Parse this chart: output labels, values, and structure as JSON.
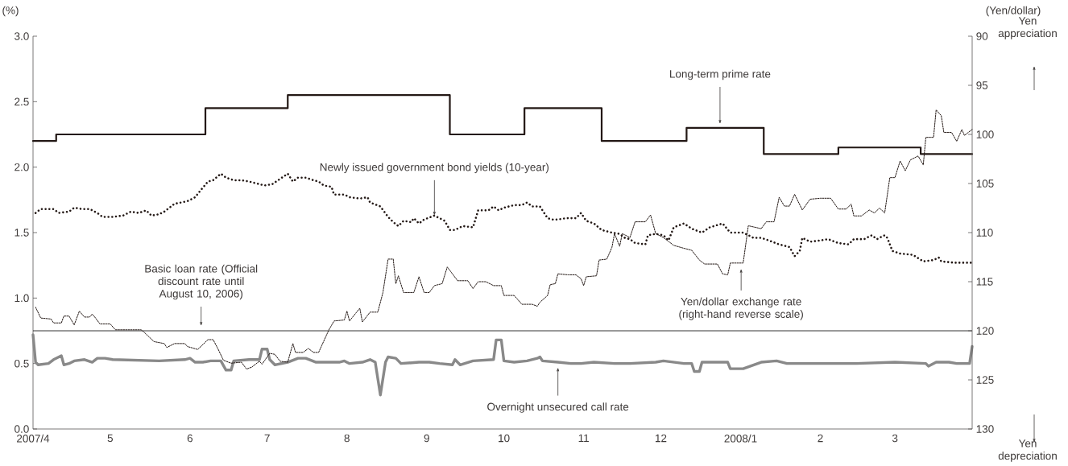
{
  "chart_data": {
    "type": "line",
    "ylabel": "(%)",
    "y2label": "(Yen/dollar)",
    "xlim": [
      "2007-04-01",
      "2008-03-31"
    ],
    "xticks": [
      {
        "value": "2007-04-01",
        "label": "2007/4"
      },
      {
        "value": "2007-05-01",
        "label": "5"
      },
      {
        "value": "2007-06-01",
        "label": "6"
      },
      {
        "value": "2007-07-01",
        "label": "7"
      },
      {
        "value": "2007-08-01",
        "label": "8"
      },
      {
        "value": "2007-09-01",
        "label": "9"
      },
      {
        "value": "2007-10-01",
        "label": "10"
      },
      {
        "value": "2007-11-01",
        "label": "11"
      },
      {
        "value": "2007-12-01",
        "label": "12"
      },
      {
        "value": "2008-01-01",
        "label": "2008/1"
      },
      {
        "value": "2008-02-01",
        "label": "2"
      },
      {
        "value": "2008-03-01",
        "label": "3"
      }
    ],
    "ylim": [
      0,
      3
    ],
    "yticks": [
      {
        "value": 0,
        "label": "0.0"
      },
      {
        "value": 0.5,
        "label": "0.5"
      },
      {
        "value": 1,
        "label": "1.0"
      },
      {
        "value": 1.5,
        "label": "1.5"
      },
      {
        "value": 2,
        "label": "2.0"
      },
      {
        "value": 2.5,
        "label": "2.5"
      },
      {
        "value": 3,
        "label": "3.0"
      }
    ],
    "y2lim": [
      130,
      90
    ],
    "y2ticks": [
      90,
      95,
      100,
      105,
      110,
      115,
      120,
      125,
      130
    ],
    "series": [
      {
        "type": "step",
        "color": "#231815",
        "line_style": "solid",
        "x": [
          "2007-04-01",
          "2007-04-10",
          "2007-06-07",
          "2007-07-09",
          "2007-09-10",
          "2007-10-09",
          "2007-11-08",
          "2007-12-11",
          "2008-01-10",
          "2008-02-08",
          "2008-03-11",
          "2008-03-31"
        ],
        "values": [
          2.2,
          2.25,
          2.45,
          2.55,
          2.25,
          2.45,
          2.2,
          2.3,
          2.1,
          2.15,
          2.1,
          2.1
        ]
      },
      {
        "color": "#231815",
        "line_style": "dotted",
        "x": [
          "2007-04-02",
          "2007-04-04",
          "2007-04-09",
          "2007-04-11",
          "2007-04-15",
          "2007-04-17",
          "2007-04-20",
          "2007-04-23",
          "2007-04-26",
          "2007-04-28",
          "2007-05-02",
          "2007-05-06",
          "2007-05-09",
          "2007-05-12",
          "2007-05-15",
          "2007-05-17",
          "2007-05-20",
          "2007-05-22",
          "2007-05-26",
          "2007-05-31",
          "2007-06-03",
          "2007-06-05",
          "2007-06-08",
          "2007-06-10",
          "2007-06-13",
          "2007-06-15",
          "2007-06-18",
          "2007-06-21",
          "2007-06-24",
          "2007-06-28",
          "2007-06-30",
          "2007-07-03",
          "2007-07-06",
          "2007-07-09",
          "2007-07-11",
          "2007-07-13",
          "2007-07-16",
          "2007-07-19",
          "2007-07-21",
          "2007-07-23",
          "2007-07-26",
          "2007-07-27",
          "2007-07-31",
          "2007-08-02",
          "2007-08-06",
          "2007-08-09",
          "2007-08-10",
          "2007-08-14",
          "2007-08-17",
          "2007-08-19",
          "2007-08-21",
          "2007-08-23",
          "2007-08-26",
          "2007-08-27",
          "2007-08-29",
          "2007-08-31",
          "2007-09-04",
          "2007-09-06",
          "2007-09-08",
          "2007-09-10",
          "2007-09-12",
          "2007-09-15",
          "2007-09-19",
          "2007-09-21",
          "2007-09-25",
          "2007-09-27",
          "2007-09-29",
          "2007-10-01",
          "2007-10-05",
          "2007-10-08",
          "2007-10-10",
          "2007-10-12",
          "2007-10-15",
          "2007-10-18",
          "2007-10-20",
          "2007-10-22",
          "2007-10-25",
          "2007-10-29",
          "2007-10-31",
          "2007-11-02",
          "2007-11-05",
          "2007-11-08",
          "2007-11-12",
          "2007-11-15",
          "2007-11-17",
          "2007-11-19",
          "2007-11-21",
          "2007-11-25",
          "2007-11-26",
          "2007-11-29",
          "2007-12-02",
          "2007-12-04",
          "2007-12-06",
          "2007-12-10",
          "2007-12-13",
          "2007-12-17",
          "2007-12-20",
          "2007-12-25",
          "2007-12-28",
          "2008-01-02",
          "2008-01-06",
          "2008-01-09",
          "2008-01-12",
          "2008-01-16",
          "2008-01-20",
          "2008-01-22",
          "2008-01-24",
          "2008-01-25",
          "2008-01-28",
          "2008-02-01",
          "2008-02-04",
          "2008-02-08",
          "2008-02-12",
          "2008-02-14",
          "2008-02-18",
          "2008-02-21",
          "2008-02-23",
          "2008-02-26",
          "2008-02-27",
          "2008-02-29",
          "2008-03-03",
          "2008-03-08",
          "2008-03-12",
          "2008-03-16",
          "2008-03-18",
          "2008-03-19",
          "2008-03-24",
          "2008-03-31"
        ],
        "values": [
          1.65,
          1.68,
          1.68,
          1.65,
          1.66,
          1.69,
          1.68,
          1.68,
          1.65,
          1.62,
          1.62,
          1.63,
          1.66,
          1.65,
          1.67,
          1.63,
          1.64,
          1.66,
          1.72,
          1.74,
          1.77,
          1.82,
          1.89,
          1.9,
          1.95,
          1.92,
          1.9,
          1.9,
          1.89,
          1.87,
          1.86,
          1.87,
          1.91,
          1.95,
          1.89,
          1.92,
          1.92,
          1.9,
          1.89,
          1.86,
          1.85,
          1.79,
          1.79,
          1.77,
          1.76,
          1.77,
          1.73,
          1.7,
          1.62,
          1.58,
          1.55,
          1.59,
          1.58,
          1.61,
          1.57,
          1.6,
          1.63,
          1.61,
          1.59,
          1.52,
          1.52,
          1.55,
          1.54,
          1.67,
          1.67,
          1.7,
          1.67,
          1.69,
          1.71,
          1.71,
          1.73,
          1.7,
          1.7,
          1.61,
          1.6,
          1.6,
          1.61,
          1.61,
          1.65,
          1.59,
          1.57,
          1.52,
          1.5,
          1.49,
          1.46,
          1.45,
          1.42,
          1.41,
          1.48,
          1.49,
          1.48,
          1.44,
          1.54,
          1.57,
          1.53,
          1.5,
          1.54,
          1.57,
          1.5,
          1.5,
          1.46,
          1.46,
          1.44,
          1.41,
          1.39,
          1.32,
          1.36,
          1.46,
          1.43,
          1.44,
          1.45,
          1.42,
          1.41,
          1.45,
          1.45,
          1.48,
          1.45,
          1.48,
          1.46,
          1.36,
          1.34,
          1.33,
          1.28,
          1.29,
          1.31,
          1.28,
          1.27,
          1.27
        ]
      },
      {
        "color": "#231815",
        "line_style": "dotted",
        "axis": "y2",
        "x": [
          "2007-04-02",
          "2007-04-04",
          "2007-04-08",
          "2007-04-09",
          "2007-04-12",
          "2007-04-13",
          "2007-04-15",
          "2007-04-17",
          "2007-04-19",
          "2007-04-21",
          "2007-04-23",
          "2007-04-24",
          "2007-04-25",
          "2007-04-27",
          "2007-05-01",
          "2007-05-03",
          "2007-05-10",
          "2007-05-13",
          "2007-05-14",
          "2007-05-18",
          "2007-05-22",
          "2007-05-23",
          "2007-05-26",
          "2007-05-30",
          "2007-05-31",
          "2007-06-04",
          "2007-06-08",
          "2007-06-10",
          "2007-06-12",
          "2007-06-14",
          "2007-06-17",
          "2007-06-21",
          "2007-06-23",
          "2007-06-25",
          "2007-06-28",
          "2007-06-29",
          "2007-07-02",
          "2007-07-04",
          "2007-07-06",
          "2007-07-09",
          "2007-07-11",
          "2007-07-12",
          "2007-07-15",
          "2007-07-17",
          "2007-07-19",
          "2007-07-21",
          "2007-07-25",
          "2007-07-27",
          "2007-07-31",
          "2007-08-01",
          "2007-08-02",
          "2007-08-06",
          "2007-08-07",
          "2007-08-10",
          "2007-08-13",
          "2007-08-15",
          "2007-08-17",
          "2007-08-19",
          "2007-08-20",
          "2007-08-21",
          "2007-08-23",
          "2007-08-27",
          "2007-08-29",
          "2007-08-31",
          "2007-09-02",
          "2007-09-04",
          "2007-09-07",
          "2007-09-09",
          "2007-09-13",
          "2007-09-17",
          "2007-09-19",
          "2007-09-21",
          "2007-09-24",
          "2007-09-27",
          "2007-09-30",
          "2007-10-01",
          "2007-10-05",
          "2007-10-08",
          "2007-10-12",
          "2007-10-14",
          "2007-10-15",
          "2007-10-18",
          "2007-10-19",
          "2007-10-21",
          "2007-10-22",
          "2007-10-26",
          "2007-10-29",
          "2007-10-31",
          "2007-11-01",
          "2007-11-02",
          "2007-11-06",
          "2007-11-07",
          "2007-11-10",
          "2007-11-12",
          "2007-11-13",
          "2007-11-15",
          "2007-11-16",
          "2007-11-19",
          "2007-11-21",
          "2007-11-25",
          "2007-11-27",
          "2007-11-29",
          "2007-12-02",
          "2007-12-04",
          "2007-12-06",
          "2007-12-10",
          "2007-12-13",
          "2007-12-16",
          "2007-12-18",
          "2007-12-23",
          "2007-12-25",
          "2007-12-27",
          "2007-12-28",
          "2008-01-02",
          "2008-01-04",
          "2008-01-09",
          "2008-01-11",
          "2008-01-14",
          "2008-01-16",
          "2008-01-18",
          "2008-01-20",
          "2008-01-22",
          "2008-01-25",
          "2008-01-28",
          "2008-02-01",
          "2008-02-05",
          "2008-02-08",
          "2008-02-11",
          "2008-02-13",
          "2008-02-14",
          "2008-02-17",
          "2008-02-20",
          "2008-02-22",
          "2008-02-24",
          "2008-02-26",
          "2008-02-28",
          "2008-03-01",
          "2008-03-03",
          "2008-03-05",
          "2008-03-07",
          "2008-03-10",
          "2008-03-12",
          "2008-03-13",
          "2008-03-16",
          "2008-03-17",
          "2008-03-19",
          "2008-03-20",
          "2008-03-23",
          "2008-03-25",
          "2008-03-27",
          "2008-03-28",
          "2008-03-31"
        ],
        "values": [
          117.6,
          118.7,
          118.8,
          119.2,
          119.2,
          118.5,
          118.5,
          119.4,
          118.0,
          118.6,
          118.6,
          118.3,
          118.6,
          119.3,
          119.3,
          119.9,
          119.9,
          119.9,
          120.1,
          121.1,
          121.3,
          121.7,
          121.3,
          121.3,
          121.6,
          121.9,
          120.9,
          120.9,
          121.9,
          123.0,
          123.3,
          123.2,
          123.9,
          123.7,
          123.1,
          123.4,
          122.3,
          122.4,
          123.1,
          123.2,
          121.3,
          122.2,
          122.2,
          121.8,
          122.2,
          122.2,
          119.9,
          119.0,
          118.9,
          118.0,
          119.0,
          117.7,
          119.1,
          118.1,
          118.1,
          116.1,
          112.7,
          112.7,
          115.2,
          114.4,
          116.1,
          116.1,
          114.5,
          116.1,
          116.1,
          115.4,
          115.2,
          113.5,
          114.9,
          114.9,
          115.7,
          115.0,
          115.0,
          115.4,
          115.4,
          116.4,
          116.4,
          117.3,
          117.3,
          117.5,
          117.1,
          116.4,
          115.3,
          115.2,
          114.2,
          114.3,
          114.3,
          114.7,
          115.4,
          114.5,
          114.4,
          112.8,
          112.7,
          111.5,
          110.1,
          111.4,
          110.1,
          110.5,
          108.9,
          108.9,
          108.2,
          110.1,
          110.5,
          110.9,
          111.3,
          111.6,
          111.8,
          112.8,
          113.2,
          113.2,
          114.2,
          114.3,
          113.1,
          113.1,
          109.3,
          109.6,
          108.9,
          108.9,
          106.4,
          107.3,
          107.3,
          106.1,
          107.7,
          106.6,
          106.5,
          106.5,
          107.6,
          107.6,
          107.1,
          108.3,
          108.3,
          107.7,
          108.0,
          107.5,
          108.0,
          104.4,
          104.4,
          102.7,
          103.7,
          102.6,
          102.2,
          103.1,
          100.3,
          100.3,
          97.5,
          98.1,
          99.8,
          99.8,
          100.7,
          99.5,
          100.1,
          99.5
        ]
      },
      {
        "color": "#898989",
        "line_style": "solid",
        "x": [
          "2007-04-01",
          "2007-04-02",
          "2007-04-03",
          "2007-04-07",
          "2007-04-09",
          "2007-04-12",
          "2007-04-13",
          "2007-04-15",
          "2007-04-17",
          "2007-04-21",
          "2007-04-24",
          "2007-04-26",
          "2007-04-29",
          "2007-05-02",
          "2007-05-20",
          "2007-05-30",
          "2007-06-01",
          "2007-06-03",
          "2007-06-06",
          "2007-06-09",
          "2007-06-13",
          "2007-06-15",
          "2007-06-17",
          "2007-06-18",
          "2007-06-24",
          "2007-06-28",
          "2007-06-29",
          "2007-07-01",
          "2007-07-02",
          "2007-07-04",
          "2007-07-09",
          "2007-07-13",
          "2007-07-16",
          "2007-07-20",
          "2007-07-29",
          "2007-07-31",
          "2007-08-02",
          "2007-08-07",
          "2007-08-10",
          "2007-08-12",
          "2007-08-14",
          "2007-08-16",
          "2007-08-17",
          "2007-08-20",
          "2007-08-22",
          "2007-08-29",
          "2007-09-02",
          "2007-09-06",
          "2007-09-11",
          "2007-09-12",
          "2007-09-14",
          "2007-09-19",
          "2007-09-27",
          "2007-09-28",
          "2007-09-30",
          "2007-10-01",
          "2007-10-05",
          "2007-10-10",
          "2007-10-14",
          "2007-10-15",
          "2007-10-16",
          "2007-10-22",
          "2007-10-27",
          "2007-10-31",
          "2007-11-05",
          "2007-11-13",
          "2007-11-19",
          "2007-11-29",
          "2007-12-02",
          "2007-12-10",
          "2007-12-13",
          "2007-12-14",
          "2007-12-16",
          "2007-12-17",
          "2007-12-27",
          "2007-12-28",
          "2008-01-02",
          "2008-01-09",
          "2008-01-15",
          "2008-01-19",
          "2008-01-25",
          "2008-02-01",
          "2008-02-15",
          "2008-03-01",
          "2008-03-13",
          "2008-03-14",
          "2008-03-17",
          "2008-03-22",
          "2008-03-25",
          "2008-03-30",
          "2008-03-31"
        ],
        "values": [
          0.72,
          0.51,
          0.49,
          0.5,
          0.53,
          0.56,
          0.49,
          0.5,
          0.52,
          0.53,
          0.51,
          0.54,
          0.54,
          0.53,
          0.52,
          0.53,
          0.54,
          0.51,
          0.51,
          0.52,
          0.52,
          0.45,
          0.45,
          0.52,
          0.53,
          0.53,
          0.61,
          0.61,
          0.53,
          0.49,
          0.51,
          0.54,
          0.54,
          0.51,
          0.51,
          0.52,
          0.5,
          0.51,
          0.53,
          0.51,
          0.26,
          0.51,
          0.55,
          0.54,
          0.5,
          0.51,
          0.51,
          0.5,
          0.49,
          0.53,
          0.49,
          0.52,
          0.53,
          0.68,
          0.68,
          0.52,
          0.51,
          0.52,
          0.54,
          0.55,
          0.52,
          0.51,
          0.5,
          0.5,
          0.51,
          0.5,
          0.5,
          0.51,
          0.52,
          0.5,
          0.5,
          0.44,
          0.44,
          0.51,
          0.51,
          0.46,
          0.46,
          0.51,
          0.52,
          0.5,
          0.5,
          0.5,
          0.5,
          0.51,
          0.5,
          0.48,
          0.51,
          0.51,
          0.5,
          0.5,
          0.63
        ]
      }
    ],
    "ref_lines": [
      {
        "axis": "y",
        "value": 0.75,
        "label": "Basic loan rate (Official discount rate until August 10, 2006)"
      }
    ],
    "annotations": [
      {
        "text": "Long-term prime rate",
        "x": "2007-12-24",
        "y": 2.33
      },
      {
        "text": "Newly issued government bond yields (10-year)",
        "x": "2007-09-04",
        "y": 1.63
      },
      "Yen/dollar exchange rate (right-hand reverse scale)",
      {
        "text": "Overnight unsecured call rate",
        "x": "2007-10-22",
        "y": 0.47
      },
      "Yen appreciation",
      "Yen depreciation"
    ]
  }
}
